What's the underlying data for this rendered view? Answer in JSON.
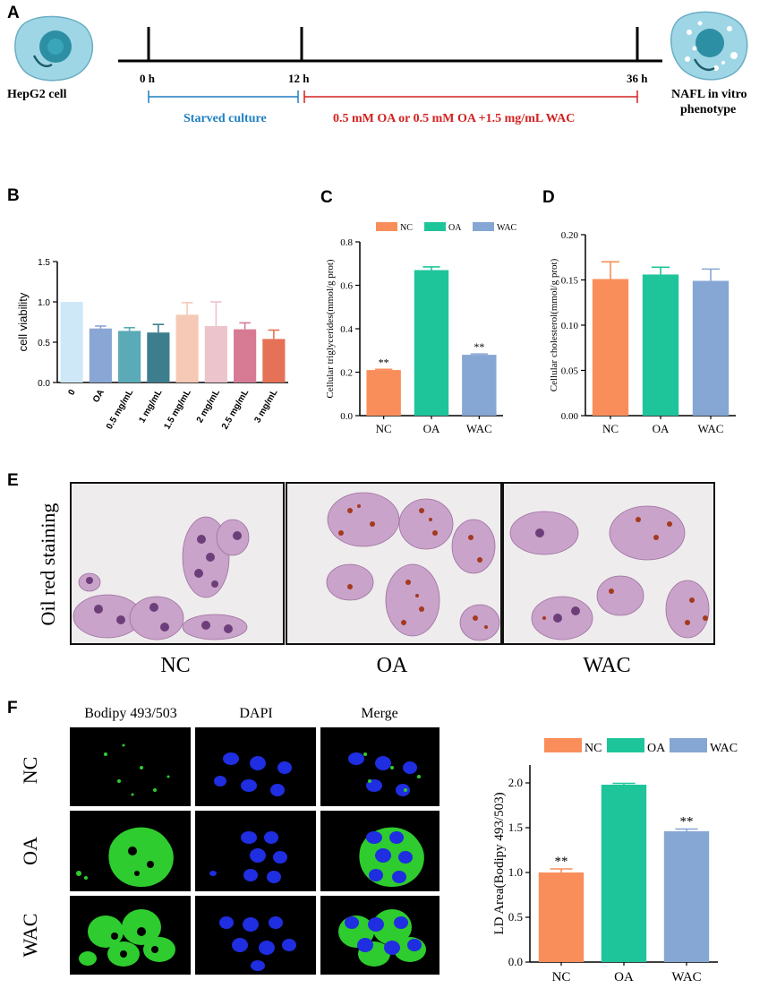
{
  "panel_labels": {
    "a": "A",
    "b": "B",
    "c": "C",
    "d": "D",
    "e": "E",
    "f": "F"
  },
  "timeline": {
    "left_cell": "HepG2 cell",
    "right_cell_line1": "NAFL in vitro",
    "right_cell_line2": "phenotype",
    "t0": "0 h",
    "t12": "12 h",
    "t36": "36 h",
    "starved": "Starved culture",
    "treatment": "0.5 mM OA or 0.5 mM OA +1.5 mg/mL WAC",
    "colors": {
      "starved": "#1f7fc2",
      "treatment": "#d42020"
    }
  },
  "e_panel": {
    "side_label": "Oil red staining",
    "captions": [
      "NC",
      "OA",
      "WAC"
    ]
  },
  "f_panel": {
    "col_headers": [
      "Bodipy 493/503",
      "DAPI",
      "Merge"
    ],
    "row_labels": [
      "NC",
      "OA",
      "WAC"
    ]
  },
  "chart_data": [
    {
      "id": "B",
      "type": "bar",
      "categories": [
        "0",
        "OA",
        "0.5 mg/mL",
        "1 mg/mL",
        "1.5 mg/mL",
        "2 mg/mL",
        "2.5 mg/mL",
        "3 mg/mL"
      ],
      "values": [
        1.0,
        0.67,
        0.64,
        0.62,
        0.84,
        0.7,
        0.66,
        0.54
      ],
      "errors": [
        0,
        0.03,
        0.04,
        0.1,
        0.15,
        0.3,
        0.08,
        0.11
      ],
      "colors": [
        "#cfe8f7",
        "#8aa6d4",
        "#5aaab8",
        "#3c7d8e",
        "#f5c9b6",
        "#ecc4cc",
        "#d77b94",
        "#e57256"
      ],
      "ylabel": "cell viability",
      "ylim": [
        0,
        1.5
      ],
      "yticks": [
        "0.0",
        "0.5",
        "1.0",
        "1.5"
      ]
    },
    {
      "id": "C",
      "type": "bar",
      "categories": [
        "NC",
        "OA",
        "WAC"
      ],
      "values": [
        0.21,
        0.67,
        0.28
      ],
      "errors": [
        0.003,
        0.015,
        0.004
      ],
      "annotations": [
        "**",
        "",
        "**"
      ],
      "colors": [
        "#f98e5a",
        "#1fc59a",
        "#86a6d4"
      ],
      "legend": [
        "NC",
        "OA",
        "WAC"
      ],
      "ylabel": "Cellular triglycerides(mmol/g prot)",
      "ylim": [
        0,
        0.8
      ],
      "yticks": [
        "0.0",
        "0.2",
        "0.4",
        "0.6",
        "0.8"
      ]
    },
    {
      "id": "D",
      "type": "bar",
      "categories": [
        "NC",
        "OA",
        "WAC"
      ],
      "values": [
        0.151,
        0.156,
        0.149
      ],
      "errors": [
        0.019,
        0.008,
        0.013
      ],
      "colors": [
        "#f98e5a",
        "#1fc59a",
        "#86a6d4"
      ],
      "ylabel": "Cellular cholesterol(mmol/g prot)",
      "ylim": [
        0,
        0.2
      ],
      "yticks": [
        "0.00",
        "0.05",
        "0.10",
        "0.15",
        "0.20"
      ]
    },
    {
      "id": "F",
      "type": "bar",
      "categories": [
        "NC",
        "OA",
        "WAC"
      ],
      "values": [
        1.0,
        1.98,
        1.46
      ],
      "errors": [
        0.04,
        0.015,
        0.025
      ],
      "annotations": [
        "**",
        "",
        "**"
      ],
      "colors": [
        "#f98e5a",
        "#1fc59a",
        "#86a6d4"
      ],
      "legend": [
        "NC",
        "OA",
        "WAC"
      ],
      "ylabel": "LD Area(Bodipy 493/503)",
      "ylim": [
        0,
        2.2
      ],
      "yticks": [
        "0.0",
        "0.5",
        "1.0",
        "1.5",
        "2.0"
      ]
    }
  ]
}
